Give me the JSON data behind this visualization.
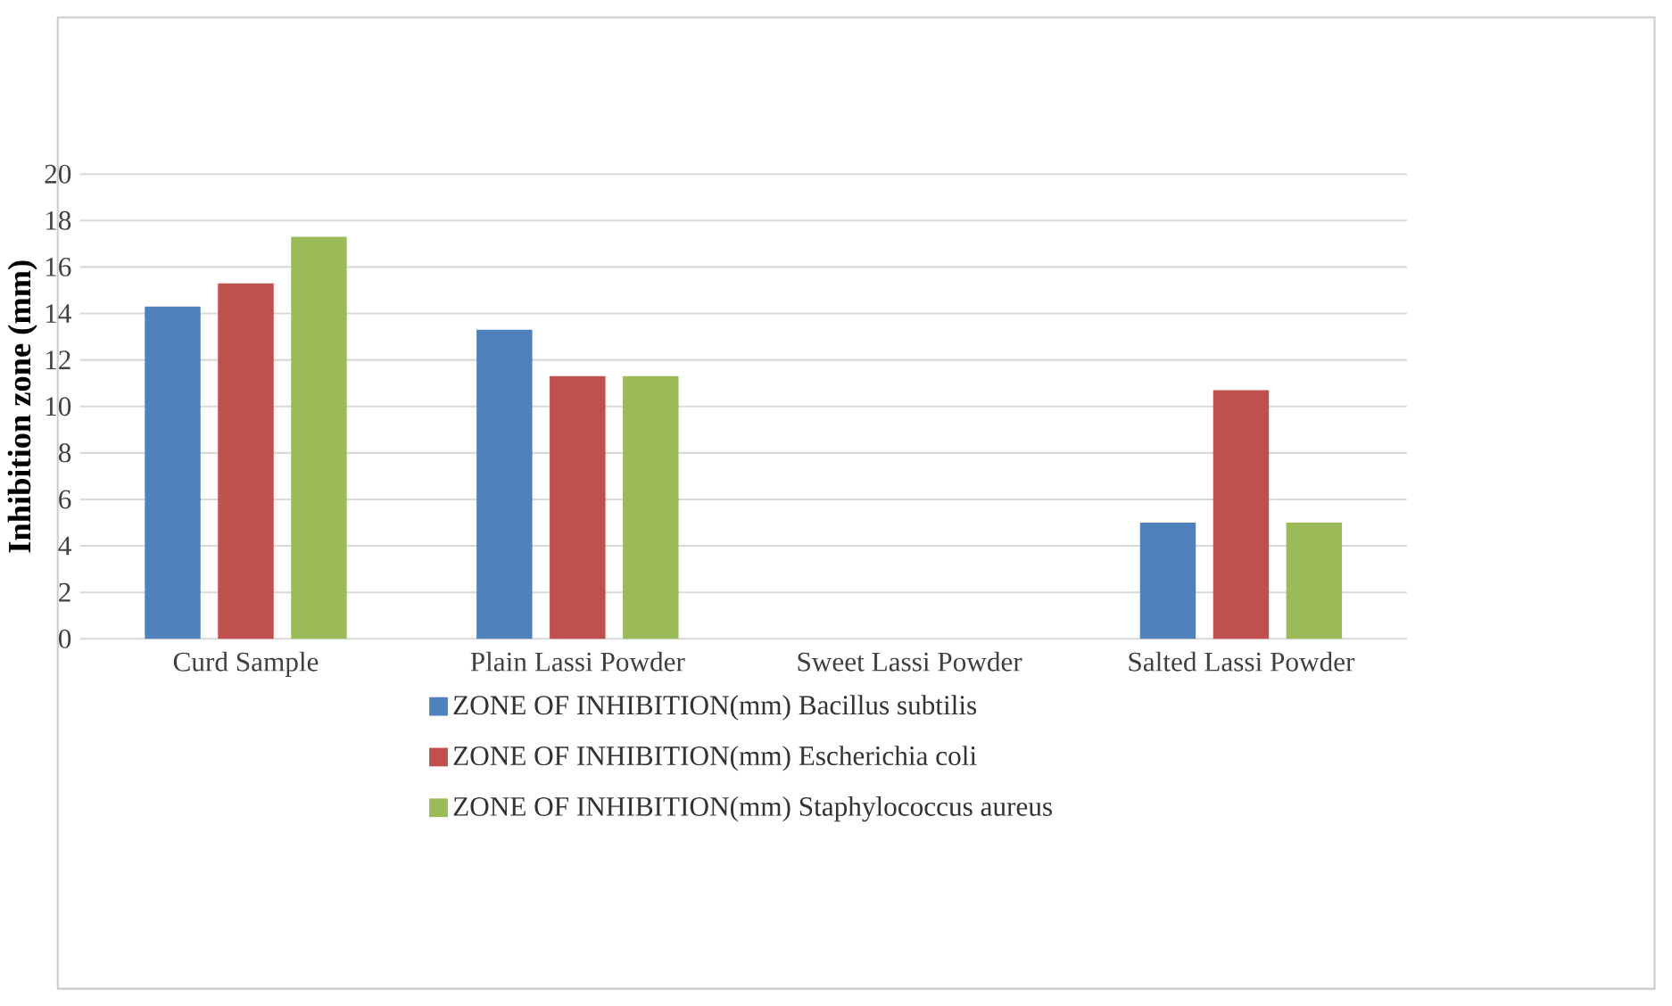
{
  "chart_data": {
    "type": "bar",
    "ylabel": "Inhibition zone (mm)",
    "categories": [
      "Curd Sample",
      "Plain Lassi Powder",
      "Sweet Lassi Powder",
      "Salted Lassi Powder"
    ],
    "series": [
      {
        "name": "ZONE OF INHIBITION(mm) Bacillus subtilis",
        "color": "#4f81bd",
        "values": [
          14.3,
          13.3,
          0,
          5
        ]
      },
      {
        "name": "ZONE OF INHIBITION(mm) Escherichia coli",
        "color": "#c0504d",
        "values": [
          15.3,
          11.3,
          0,
          10.7
        ]
      },
      {
        "name": "ZONE OF INHIBITION(mm) Staphylococcus aureus",
        "color": "#9bbb59",
        "values": [
          17.3,
          11.3,
          0,
          5
        ]
      }
    ],
    "ylim": [
      0,
      20
    ],
    "yticks": [
      0,
      2,
      4,
      6,
      8,
      10,
      12,
      14,
      16,
      18,
      20
    ],
    "grid": "y",
    "legend": "bottom"
  }
}
